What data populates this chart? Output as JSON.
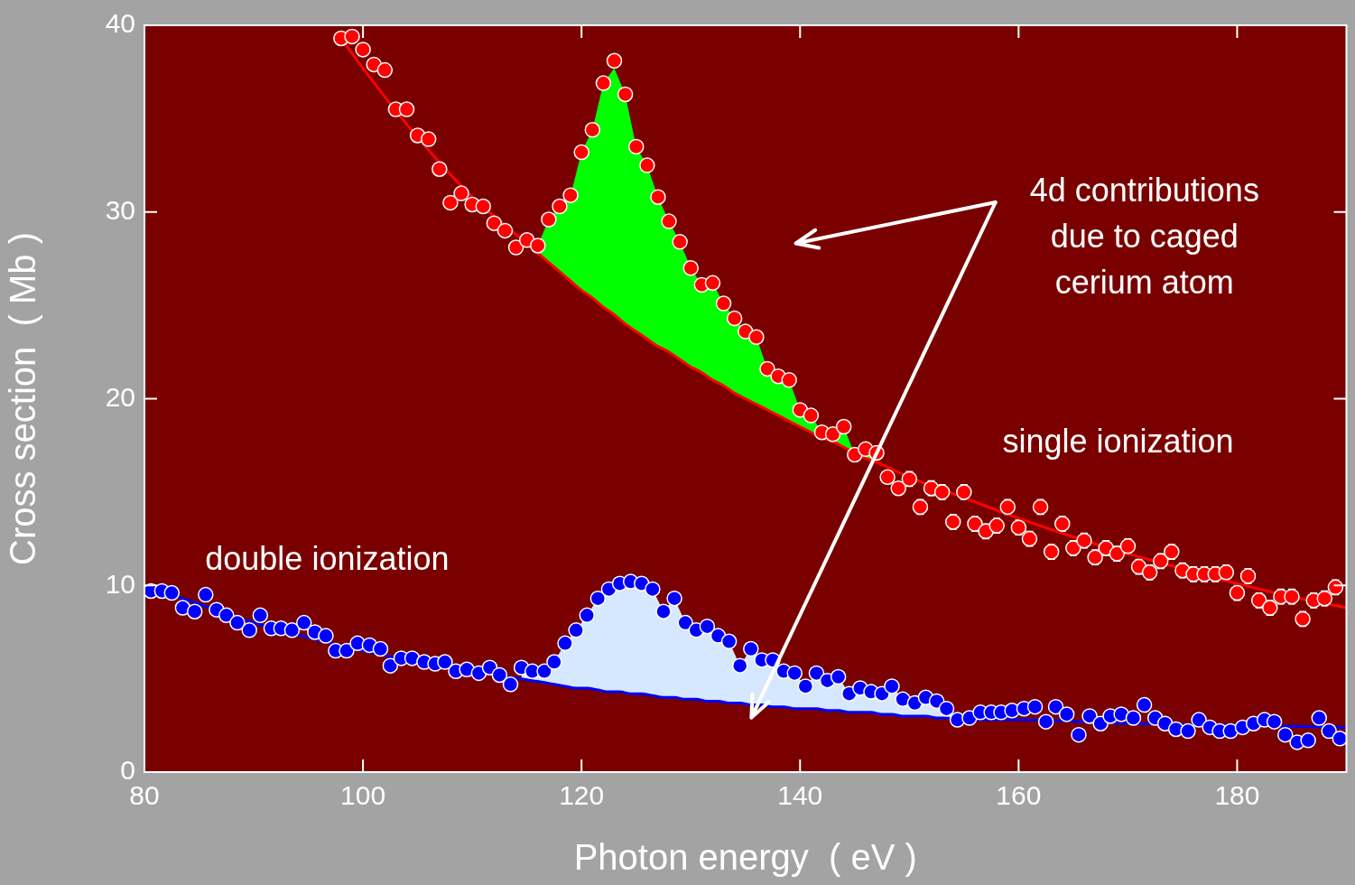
{
  "chart_data": {
    "type": "scatter",
    "xlabel": "Photon energy  ( eV )",
    "ylabel": "Cross section  ( Mb )",
    "xlim": [
      80,
      190
    ],
    "ylim": [
      0,
      40
    ],
    "xticks": [
      80,
      100,
      120,
      140,
      160,
      180
    ],
    "yticks": [
      0,
      10,
      20,
      30,
      40
    ],
    "grid": false,
    "legend": false,
    "marker": "circle",
    "annotations": [
      "4d contributions\ndue to caged\ncerium atom",
      "single ionization",
      "double ionization"
    ],
    "series": [
      {
        "type": "line",
        "marker": "none",
        "color": "#ff0000",
        "x": [
          98,
          100,
          105,
          110,
          114,
          115,
          116,
          117,
          118,
          119,
          120,
          121,
          122,
          123,
          124,
          125,
          126,
          127,
          128,
          129,
          130,
          131,
          132,
          133,
          134,
          135,
          136,
          137,
          138,
          139,
          140,
          141,
          142,
          143,
          144,
          145,
          146,
          147,
          150,
          155,
          160,
          165,
          170,
          175,
          180,
          185,
          190
        ],
        "values": [
          39.3,
          37.7,
          34.0,
          30.8,
          28.8,
          28.3,
          27.8,
          27.3,
          26.8,
          26.3,
          25.8,
          25.4,
          24.9,
          24.5,
          24.0,
          23.6,
          23.2,
          22.8,
          22.5,
          22.1,
          21.7,
          21.4,
          21.0,
          20.7,
          20.3,
          20.0,
          19.7,
          19.4,
          19.1,
          18.8,
          18.5,
          18.2,
          17.9,
          17.7,
          17.4,
          17.1,
          16.8,
          16.6,
          15.8,
          14.7,
          13.6,
          12.6,
          11.7,
          10.9,
          10.1,
          9.4,
          8.8
        ],
        "lower": [
          null,
          null,
          null,
          null,
          28.8,
          28.3,
          27.8,
          27.3,
          26.8,
          26.3,
          25.8,
          25.4,
          24.9,
          24.5,
          24.0,
          23.6,
          23.2,
          22.8,
          22.5,
          22.1,
          21.7,
          21.4,
          21.0,
          20.7,
          20.3,
          20.0,
          19.7,
          19.4,
          19.1,
          18.8,
          18.5,
          18.2,
          17.9,
          17.7,
          17.4,
          17.1,
          16.8,
          16.6,
          null,
          null,
          null,
          null,
          null,
          null,
          null,
          null,
          null
        ],
        "upper": [
          null,
          null,
          null,
          null,
          28.8,
          28.5,
          28.2,
          29.6,
          30.3,
          30.9,
          33.2,
          34.4,
          36.9,
          37.7,
          36.3,
          33.5,
          32.5,
          30.8,
          29.5,
          28.4,
          27.0,
          26.1,
          26.2,
          25.1,
          24.3,
          23.6,
          23.3,
          21.6,
          21.2,
          21.0,
          19.4,
          19.1,
          18.2,
          18.1,
          18.5,
          17.0,
          17.3,
          16.6,
          null,
          null,
          null,
          null,
          null,
          null,
          null,
          null,
          null
        ]
      },
      {
        "type": "line",
        "marker": "none",
        "color": "#0000ff",
        "x": [
          80,
          85,
          90,
          95,
          100,
          105,
          110,
          114.5,
          115.5,
          116.6,
          117.5,
          118.5,
          119.5,
          120.5,
          121.5,
          122.5,
          123.5,
          124.5,
          125.5,
          126.5,
          127.5,
          128.5,
          129.5,
          130.5,
          131.5,
          132.5,
          133.5,
          134.5,
          135.5,
          136.5,
          137.5,
          138.5,
          139.5,
          140.5,
          141.5,
          142.5,
          143.5,
          144.5,
          145.5,
          146.5,
          147.5,
          148.4,
          149.4,
          150.5,
          151.5,
          152.5,
          153.4,
          154.4,
          160,
          170,
          180,
          190
        ],
        "values": [
          10.0,
          9.0,
          8.0,
          7.2,
          6.5,
          5.9,
          5.4,
          5.0,
          4.9,
          4.8,
          4.7,
          4.6,
          4.5,
          4.5,
          4.4,
          4.3,
          4.3,
          4.2,
          4.2,
          4.1,
          4.0,
          4.0,
          3.9,
          3.9,
          3.8,
          3.8,
          3.7,
          3.7,
          3.6,
          3.6,
          3.5,
          3.5,
          3.4,
          3.4,
          3.4,
          3.3,
          3.3,
          3.2,
          3.2,
          3.2,
          3.1,
          3.1,
          3.0,
          3.0,
          3.0,
          2.9,
          2.9,
          2.8,
          2.8,
          2.6,
          2.5,
          2.4
        ],
        "lower": [
          null,
          null,
          null,
          null,
          null,
          null,
          null,
          5.0,
          4.9,
          4.8,
          4.7,
          4.6,
          4.5,
          4.5,
          4.4,
          4.3,
          4.3,
          4.2,
          4.2,
          4.1,
          4.0,
          4.0,
          3.9,
          3.9,
          3.8,
          3.8,
          3.7,
          3.7,
          3.6,
          3.6,
          3.5,
          3.5,
          3.4,
          3.4,
          3.4,
          3.3,
          3.3,
          3.2,
          3.2,
          3.2,
          3.1,
          3.1,
          3.0,
          3.0,
          3.0,
          2.9,
          2.9,
          2.8,
          null,
          null,
          null,
          null
        ],
        "upper": [
          null,
          null,
          null,
          null,
          null,
          null,
          null,
          5.6,
          5.4,
          5.4,
          5.9,
          6.9,
          7.6,
          8.4,
          9.3,
          9.8,
          10.1,
          10.2,
          10.1,
          9.8,
          8.6,
          9.3,
          8.0,
          7.6,
          7.8,
          7.3,
          7.0,
          5.7,
          6.6,
          6.0,
          6.0,
          5.4,
          5.3,
          4.6,
          5.3,
          4.9,
          5.1,
          4.2,
          4.5,
          4.3,
          4.2,
          4.6,
          3.9,
          3.7,
          4.0,
          3.8,
          3.4,
          2.8,
          null,
          null,
          null,
          null
        ]
      },
      {
        "color": "#ff0000",
        "x": [
          98,
          99,
          100,
          101,
          102,
          103,
          104,
          105,
          106,
          107,
          108,
          109,
          110,
          111,
          112,
          113,
          114,
          115,
          116,
          117,
          118,
          119,
          120,
          121,
          122,
          123,
          124,
          125,
          126,
          127,
          128,
          129,
          130,
          131,
          132,
          133,
          134,
          135,
          136,
          137,
          138,
          139,
          140,
          141,
          142,
          143,
          144,
          145,
          146,
          147,
          148,
          149,
          150,
          151,
          152,
          153,
          154,
          155,
          156,
          157,
          158,
          159,
          160,
          161,
          162,
          163,
          164,
          165,
          166,
          167,
          168,
          169,
          170,
          171,
          172,
          173,
          174,
          175,
          176,
          177,
          178,
          179,
          180,
          181,
          182,
          183,
          184,
          185,
          186,
          187,
          188,
          189
        ],
        "values": [
          39.3,
          39.4,
          38.7,
          37.9,
          37.6,
          35.5,
          35.5,
          34.1,
          33.9,
          32.3,
          30.5,
          31.0,
          30.4,
          30.3,
          29.4,
          29.0,
          28.1,
          28.5,
          28.2,
          29.6,
          30.3,
          30.9,
          33.2,
          34.4,
          36.9,
          38.1,
          36.3,
          33.5,
          32.5,
          30.8,
          29.5,
          28.4,
          27.0,
          26.1,
          26.2,
          25.1,
          24.3,
          23.6,
          23.3,
          21.6,
          21.2,
          21.0,
          19.4,
          19.1,
          18.2,
          18.1,
          18.5,
          17.0,
          17.3,
          17.1,
          15.8,
          15.2,
          15.7,
          14.2,
          15.2,
          15.0,
          13.4,
          15.0,
          13.3,
          12.9,
          13.2,
          14.2,
          13.1,
          12.5,
          14.2,
          11.8,
          13.3,
          12.0,
          12.4,
          11.5,
          12.0,
          11.7,
          12.1,
          11.0,
          10.7,
          11.3,
          11.8,
          10.8,
          10.6,
          10.6,
          10.6,
          10.7,
          9.6,
          10.5,
          9.2,
          8.8,
          9.4,
          9.4,
          8.2,
          9.2,
          9.3,
          9.9
        ],
        "errors": [
          null,
          null,
          null,
          null,
          null,
          null,
          null,
          null,
          null,
          null,
          null,
          null,
          null,
          null,
          null,
          null,
          null,
          null,
          null,
          null,
          null,
          null,
          null,
          null,
          null,
          null,
          null,
          null,
          null,
          null,
          null,
          null,
          null,
          null,
          null,
          null,
          null,
          null,
          null,
          null,
          null,
          null,
          null,
          null,
          null,
          null,
          null,
          null,
          null,
          null,
          null,
          null,
          0.4,
          0.4,
          0.4,
          0.4,
          0.4,
          0.4,
          0.4,
          0.4,
          0.4,
          0.4,
          0.4,
          0.4,
          0.4,
          0.4,
          0.4,
          0.4,
          0.4,
          0.4,
          0.4,
          0.4,
          0.4,
          0.4,
          0.4,
          0.4,
          0.4,
          0.4,
          0.4,
          0.4,
          0.4,
          0.4,
          0.4,
          0.4,
          0.4,
          0.4,
          0.4,
          0.4,
          0.4,
          0.4,
          0.4,
          0.4
        ]
      },
      {
        "color": "#0000ff",
        "x": [
          80.6,
          81.6,
          82.5,
          83.5,
          84.6,
          85.6,
          86.6,
          87.5,
          88.5,
          89.6,
          90.6,
          91.6,
          92.5,
          93.5,
          94.6,
          95.6,
          96.6,
          97.5,
          98.5,
          99.5,
          100.6,
          101.6,
          102.5,
          103.5,
          104.5,
          105.6,
          106.6,
          107.5,
          108.5,
          109.5,
          110.6,
          111.6,
          112.5,
          113.5,
          114.5,
          115.5,
          116.6,
          117.5,
          118.5,
          119.5,
          120.5,
          121.5,
          122.5,
          123.5,
          124.5,
          125.5,
          126.5,
          127.5,
          128.5,
          129.5,
          130.5,
          131.5,
          132.5,
          133.5,
          134.5,
          135.5,
          136.5,
          137.5,
          138.5,
          139.5,
          140.5,
          141.5,
          142.5,
          143.5,
          144.5,
          145.5,
          146.5,
          147.5,
          148.4,
          149.4,
          150.5,
          151.5,
          152.5,
          153.4,
          154.4,
          155.5,
          156.5,
          157.5,
          158.4,
          159.4,
          160.5,
          161.5,
          162.5,
          163.4,
          164.4,
          165.5,
          166.5,
          167.5,
          168.4,
          169.4,
          170.5,
          171.5,
          172.5,
          173.4,
          174.4,
          175.5,
          176.5,
          177.5,
          178.4,
          179.4,
          180.5,
          181.5,
          182.5,
          183.4,
          184.4,
          185.5,
          186.5,
          187.5,
          188.4,
          189.4
        ],
        "values": [
          9.7,
          9.7,
          9.6,
          8.8,
          8.6,
          9.5,
          8.7,
          8.4,
          8.0,
          7.6,
          8.4,
          7.7,
          7.7,
          7.6,
          8.0,
          7.5,
          7.3,
          6.5,
          6.5,
          6.9,
          6.8,
          6.6,
          5.7,
          6.1,
          6.1,
          5.9,
          5.8,
          5.9,
          5.4,
          5.5,
          5.3,
          5.6,
          5.2,
          4.7,
          5.6,
          5.4,
          5.4,
          5.9,
          6.9,
          7.6,
          8.4,
          9.3,
          9.8,
          10.1,
          10.2,
          10.1,
          9.8,
          8.6,
          9.3,
          8.0,
          7.6,
          7.8,
          7.3,
          7.0,
          5.7,
          6.6,
          6.0,
          6.0,
          5.4,
          5.3,
          4.6,
          5.3,
          4.9,
          5.1,
          4.2,
          4.5,
          4.3,
          4.2,
          4.6,
          3.9,
          3.7,
          4.0,
          3.8,
          3.4,
          2.8,
          2.9,
          3.2,
          3.2,
          3.2,
          3.3,
          3.4,
          3.5,
          2.7,
          3.5,
          3.1,
          2.0,
          3.0,
          2.6,
          3.0,
          3.1,
          2.9,
          3.6,
          2.9,
          2.6,
          2.3,
          2.2,
          2.8,
          2.4,
          2.2,
          2.2,
          2.4,
          2.6,
          2.8,
          2.7,
          2.0,
          1.6,
          1.7,
          2.9,
          2.2,
          1.8
        ]
      }
    ]
  }
}
